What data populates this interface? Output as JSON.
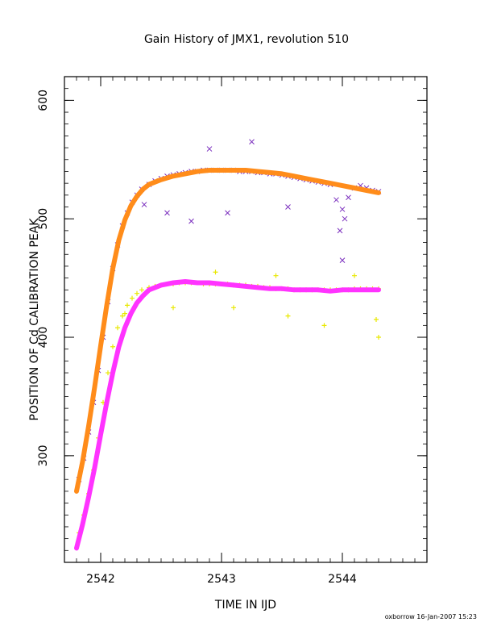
{
  "chart_data": {
    "type": "scatter",
    "title": "Gain History of JMX1, revolution 510",
    "xlabel": "TIME IN IJD",
    "ylabel": "POSITION OF Cd CALIBRATION PEAK",
    "xlim": [
      2541.7,
      2544.7
    ],
    "ylim": [
      210,
      620
    ],
    "x_ticks": [
      2542,
      2543,
      2544
    ],
    "y_ticks": [
      300,
      400,
      500,
      600
    ],
    "grid": false,
    "series": [
      {
        "marker": "x",
        "color": "#7B2FBE",
        "points": [
          [
            2541.82,
            280
          ],
          [
            2541.86,
            298
          ],
          [
            2541.9,
            320
          ],
          [
            2541.94,
            345
          ],
          [
            2541.98,
            372
          ],
          [
            2542.02,
            400
          ],
          [
            2542.06,
            430
          ],
          [
            2542.1,
            458
          ],
          [
            2542.14,
            478
          ],
          [
            2542.18,
            494
          ],
          [
            2542.22,
            505
          ],
          [
            2542.26,
            514
          ],
          [
            2542.3,
            520
          ],
          [
            2542.34,
            525
          ],
          [
            2542.4,
            529
          ],
          [
            2542.45,
            532
          ],
          [
            2542.5,
            534
          ],
          [
            2542.55,
            536
          ],
          [
            2542.6,
            537
          ],
          [
            2542.65,
            538
          ],
          [
            2542.7,
            539
          ],
          [
            2542.75,
            540
          ],
          [
            2542.8,
            540
          ],
          [
            2542.85,
            541
          ],
          [
            2542.9,
            541
          ],
          [
            2542.95,
            541
          ],
          [
            2543.0,
            541
          ],
          [
            2543.05,
            541
          ],
          [
            2543.1,
            541
          ],
          [
            2543.15,
            540
          ],
          [
            2543.2,
            540
          ],
          [
            2543.25,
            540
          ],
          [
            2543.3,
            539
          ],
          [
            2543.35,
            539
          ],
          [
            2543.4,
            538
          ],
          [
            2543.45,
            538
          ],
          [
            2543.5,
            537
          ],
          [
            2543.55,
            536
          ],
          [
            2543.6,
            535
          ],
          [
            2543.65,
            534
          ],
          [
            2543.7,
            533
          ],
          [
            2543.75,
            532
          ],
          [
            2543.8,
            531
          ],
          [
            2543.85,
            530
          ],
          [
            2543.9,
            529
          ],
          [
            2543.95,
            516
          ],
          [
            2544.0,
            508
          ],
          [
            2544.05,
            518
          ],
          [
            2544.1,
            526
          ],
          [
            2544.15,
            528
          ],
          [
            2544.2,
            526
          ],
          [
            2544.25,
            524
          ],
          [
            2544.3,
            523
          ],
          [
            2542.36,
            512
          ],
          [
            2542.55,
            505
          ],
          [
            2542.75,
            498
          ],
          [
            2543.05,
            505
          ],
          [
            2543.55,
            510
          ],
          [
            2544.0,
            465
          ],
          [
            2543.98,
            490
          ],
          [
            2544.02,
            500
          ],
          [
            2543.25,
            565
          ],
          [
            2542.9,
            559
          ]
        ]
      },
      {
        "marker": "+",
        "color": "#E8E800",
        "points": [
          [
            2541.82,
            235
          ],
          [
            2541.86,
            250
          ],
          [
            2541.9,
            268
          ],
          [
            2541.94,
            288
          ],
          [
            2541.98,
            315
          ],
          [
            2542.02,
            345
          ],
          [
            2542.06,
            370
          ],
          [
            2542.1,
            392
          ],
          [
            2542.14,
            408
          ],
          [
            2542.18,
            418
          ],
          [
            2542.22,
            427
          ],
          [
            2542.26,
            433
          ],
          [
            2542.3,
            437
          ],
          [
            2542.34,
            440
          ],
          [
            2542.4,
            442
          ],
          [
            2542.45,
            443
          ],
          [
            2542.5,
            444
          ],
          [
            2542.55,
            445
          ],
          [
            2542.6,
            445
          ],
          [
            2542.65,
            446
          ],
          [
            2542.7,
            446
          ],
          [
            2542.75,
            446
          ],
          [
            2542.8,
            446
          ],
          [
            2542.85,
            445
          ],
          [
            2542.9,
            445
          ],
          [
            2542.95,
            445
          ],
          [
            2543.0,
            445
          ],
          [
            2543.05,
            445
          ],
          [
            2543.1,
            444
          ],
          [
            2543.15,
            444
          ],
          [
            2543.2,
            444
          ],
          [
            2543.25,
            443
          ],
          [
            2543.3,
            443
          ],
          [
            2543.35,
            442
          ],
          [
            2543.4,
            442
          ],
          [
            2543.45,
            441
          ],
          [
            2543.5,
            441
          ],
          [
            2543.55,
            441
          ],
          [
            2543.6,
            440
          ],
          [
            2543.65,
            440
          ],
          [
            2543.7,
            440
          ],
          [
            2543.75,
            440
          ],
          [
            2543.8,
            440
          ],
          [
            2543.85,
            440
          ],
          [
            2543.9,
            440
          ],
          [
            2543.95,
            440
          ],
          [
            2544.0,
            440
          ],
          [
            2544.05,
            440
          ],
          [
            2544.1,
            441
          ],
          [
            2544.15,
            441
          ],
          [
            2544.2,
            441
          ],
          [
            2544.25,
            441
          ],
          [
            2544.3,
            441
          ],
          [
            2542.2,
            420
          ],
          [
            2542.6,
            425
          ],
          [
            2543.1,
            425
          ],
          [
            2543.55,
            418
          ],
          [
            2543.85,
            410
          ],
          [
            2544.3,
            400
          ],
          [
            2544.28,
            415
          ],
          [
            2542.95,
            455
          ],
          [
            2543.45,
            452
          ],
          [
            2544.1,
            452
          ]
        ]
      },
      {
        "marker": "line",
        "color": "#FF8C1A",
        "points": [
          [
            2541.8,
            270
          ],
          [
            2541.85,
            295
          ],
          [
            2541.9,
            325
          ],
          [
            2541.95,
            358
          ],
          [
            2542.0,
            393
          ],
          [
            2542.05,
            427
          ],
          [
            2542.1,
            458
          ],
          [
            2542.15,
            482
          ],
          [
            2542.2,
            499
          ],
          [
            2542.25,
            511
          ],
          [
            2542.3,
            519
          ],
          [
            2542.35,
            525
          ],
          [
            2542.4,
            529
          ],
          [
            2542.5,
            533
          ],
          [
            2542.6,
            536
          ],
          [
            2542.7,
            538
          ],
          [
            2542.8,
            540
          ],
          [
            2542.9,
            541
          ],
          [
            2543.0,
            541
          ],
          [
            2543.1,
            541
          ],
          [
            2543.2,
            541
          ],
          [
            2543.3,
            540
          ],
          [
            2543.4,
            539
          ],
          [
            2543.5,
            538
          ],
          [
            2543.6,
            536
          ],
          [
            2543.7,
            534
          ],
          [
            2543.8,
            532
          ],
          [
            2543.9,
            530
          ],
          [
            2544.0,
            528
          ],
          [
            2544.1,
            526
          ],
          [
            2544.2,
            524
          ],
          [
            2544.3,
            522
          ]
        ]
      },
      {
        "marker": "line",
        "color": "#FF33FF",
        "points": [
          [
            2541.8,
            222
          ],
          [
            2541.85,
            242
          ],
          [
            2541.9,
            265
          ],
          [
            2541.95,
            290
          ],
          [
            2542.0,
            318
          ],
          [
            2542.05,
            345
          ],
          [
            2542.1,
            370
          ],
          [
            2542.15,
            392
          ],
          [
            2542.2,
            408
          ],
          [
            2542.25,
            420
          ],
          [
            2542.3,
            429
          ],
          [
            2542.35,
            435
          ],
          [
            2542.4,
            440
          ],
          [
            2542.5,
            444
          ],
          [
            2542.6,
            446
          ],
          [
            2542.7,
            447
          ],
          [
            2542.8,
            446
          ],
          [
            2542.9,
            446
          ],
          [
            2543.0,
            445
          ],
          [
            2543.1,
            444
          ],
          [
            2543.2,
            443
          ],
          [
            2543.3,
            442
          ],
          [
            2543.4,
            441
          ],
          [
            2543.5,
            441
          ],
          [
            2543.6,
            440
          ],
          [
            2543.7,
            440
          ],
          [
            2543.8,
            440
          ],
          [
            2543.9,
            439
          ],
          [
            2544.0,
            440
          ],
          [
            2544.1,
            440
          ],
          [
            2544.2,
            440
          ],
          [
            2544.3,
            440
          ]
        ]
      }
    ]
  },
  "footer": "oxborrow 16-Jan-2007 15:23"
}
